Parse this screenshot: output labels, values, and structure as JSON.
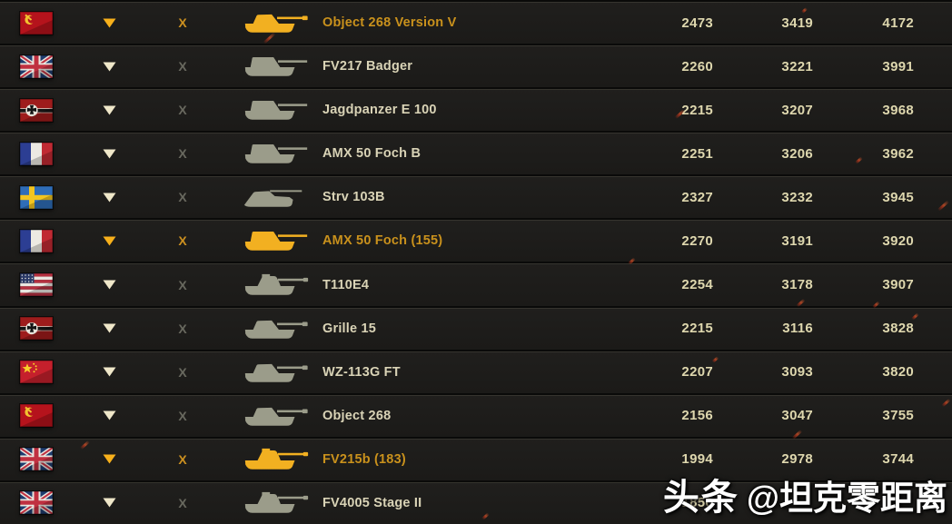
{
  "watermark": {
    "prefix": "头条",
    "handle": "@坦克零距离"
  },
  "colors": {
    "accent_gold": "#f7b01b",
    "highlight_name_gold": "#c9911c",
    "text_cream": "#d9d3b6",
    "numbers_cream": "#ded7ae",
    "tank_gray": "#9b9c8a",
    "x_gray": "#69695f",
    "row_background": "#1d1c1a"
  },
  "table": {
    "rows": [
      {
        "nation": "ussr",
        "flag_icon": "ussr-flag",
        "sort_icon": "triangle-down-icon",
        "remove": "X",
        "tank": "Object 268 Version V",
        "tank_icon": "tank-silhouette-casemate-long",
        "highlighted": true,
        "values": [
          "2473",
          "3419",
          "4172"
        ]
      },
      {
        "nation": "uk",
        "flag_icon": "uk-flag",
        "sort_icon": "triangle-down-icon",
        "remove": "X",
        "tank": "FV217 Badger",
        "tank_icon": "tank-silhouette-boxy",
        "highlighted": false,
        "values": [
          "2260",
          "3221",
          "3991"
        ]
      },
      {
        "nation": "germany",
        "flag_icon": "germany-flag",
        "sort_icon": "triangle-down-icon",
        "remove": "X",
        "tank": "Jagdpanzer E 100",
        "tank_icon": "tank-silhouette-boxy",
        "highlighted": false,
        "values": [
          "2215",
          "3207",
          "3968"
        ]
      },
      {
        "nation": "france",
        "flag_icon": "france-flag",
        "sort_icon": "triangle-down-icon",
        "remove": "X",
        "tank": "AMX 50 Foch B",
        "tank_icon": "tank-silhouette-boxy",
        "highlighted": false,
        "values": [
          "2251",
          "3206",
          "3962"
        ]
      },
      {
        "nation": "sweden",
        "flag_icon": "sweden-flag",
        "sort_icon": "triangle-down-icon",
        "remove": "X",
        "tank": "Strv 103B",
        "tank_icon": "tank-silhouette-wedge",
        "highlighted": false,
        "values": [
          "2327",
          "3232",
          "3945"
        ]
      },
      {
        "nation": "france",
        "flag_icon": "france-flag",
        "sort_icon": "triangle-down-icon",
        "remove": "X",
        "tank": "AMX 50 Foch (155)",
        "tank_icon": "tank-silhouette-boxy",
        "highlighted": true,
        "values": [
          "2270",
          "3191",
          "3920"
        ]
      },
      {
        "nation": "usa",
        "flag_icon": "usa-flag",
        "sort_icon": "triangle-down-icon",
        "remove": "X",
        "tank": "T110E4",
        "tank_icon": "tank-silhouette-turreted",
        "highlighted": false,
        "values": [
          "2254",
          "3178",
          "3907"
        ]
      },
      {
        "nation": "germany",
        "flag_icon": "germany-flag",
        "sort_icon": "triangle-down-icon",
        "remove": "X",
        "tank": "Grille 15",
        "tank_icon": "tank-silhouette-casemate-long",
        "highlighted": false,
        "values": [
          "2215",
          "3116",
          "3828"
        ]
      },
      {
        "nation": "china",
        "flag_icon": "china-flag",
        "sort_icon": "triangle-down-icon",
        "remove": "X",
        "tank": "WZ-113G FT",
        "tank_icon": "tank-silhouette-casemate-long",
        "highlighted": false,
        "values": [
          "2207",
          "3093",
          "3820"
        ]
      },
      {
        "nation": "ussr",
        "flag_icon": "ussr-flag",
        "sort_icon": "triangle-down-icon",
        "remove": "X",
        "tank": "Object 268",
        "tank_icon": "tank-silhouette-casemate-long",
        "highlighted": false,
        "values": [
          "2156",
          "3047",
          "3755"
        ]
      },
      {
        "nation": "uk",
        "flag_icon": "uk-flag",
        "sort_icon": "triangle-down-icon",
        "remove": "X",
        "tank": "FV215b (183)",
        "tank_icon": "tank-silhouette-turreted",
        "highlighted": true,
        "values": [
          "1994",
          "2978",
          "3744"
        ]
      },
      {
        "nation": "uk",
        "flag_icon": "uk-flag",
        "sort_icon": "triangle-down-icon",
        "remove": "X",
        "tank": "FV4005 Stage II",
        "tank_icon": "tank-silhouette-turreted",
        "highlighted": false,
        "values": [
          "1850",
          "",
          ""
        ]
      }
    ]
  }
}
